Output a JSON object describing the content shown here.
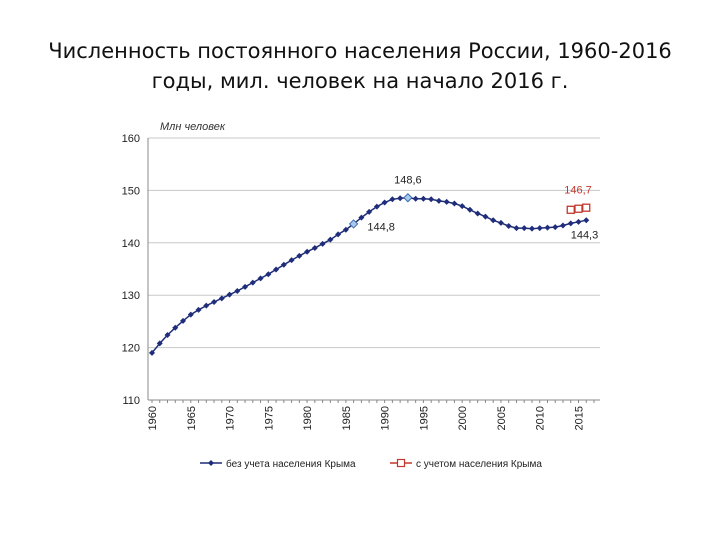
{
  "slide": {
    "title_line1": "Численность постоянного населения России, 1960-2016",
    "title_line2": "годы, мил. человек на начало 2016 г."
  },
  "chart_data": {
    "type": "line",
    "unit_label": "Млн человек",
    "ylim": [
      110,
      160
    ],
    "y_ticks": [
      "110",
      "120",
      "130",
      "140",
      "150",
      "160"
    ],
    "xlim": [
      1960,
      2017
    ],
    "x_ticks": [
      "1960",
      "1965",
      "1970",
      "1975",
      "1980",
      "1985",
      "1990",
      "1995",
      "2000",
      "2005",
      "2010",
      "2015"
    ],
    "grid": true,
    "legend_position": "bottom",
    "series": [
      {
        "name": "без учета населения Крыма",
        "color": "#1f2d7a",
        "x": [
          1960,
          1961,
          1962,
          1963,
          1964,
          1965,
          1966,
          1967,
          1968,
          1969,
          1970,
          1971,
          1972,
          1973,
          1974,
          1975,
          1976,
          1977,
          1978,
          1979,
          1980,
          1981,
          1982,
          1983,
          1984,
          1985,
          1986,
          1987,
          1988,
          1989,
          1990,
          1991,
          1992,
          1993,
          1994,
          1995,
          1996,
          1997,
          1998,
          1999,
          2000,
          2001,
          2002,
          2003,
          2004,
          2005,
          2006,
          2007,
          2008,
          2009,
          2010,
          2011,
          2012,
          2013,
          2014,
          2015,
          2016
        ],
        "values": [
          119.0,
          120.8,
          122.4,
          123.8,
          125.1,
          126.3,
          127.2,
          128.0,
          128.7,
          129.4,
          130.1,
          130.8,
          131.6,
          132.4,
          133.2,
          134.0,
          134.9,
          135.8,
          136.7,
          137.5,
          138.3,
          139.0,
          139.8,
          140.6,
          141.6,
          142.5,
          143.6,
          144.8,
          145.9,
          146.9,
          147.7,
          148.3,
          148.5,
          148.6,
          148.4,
          148.4,
          148.3,
          148.0,
          147.8,
          147.5,
          147.0,
          146.3,
          145.6,
          145.0,
          144.3,
          143.8,
          143.2,
          142.8,
          142.8,
          142.7,
          142.8,
          142.9,
          143.0,
          143.3,
          143.7,
          144.0,
          144.3
        ],
        "highlight_points": [
          {
            "x": 1986,
            "value": 143.6
          },
          {
            "x": 1993,
            "value": 148.6
          }
        ]
      },
      {
        "name": "с учетом населения Крыма",
        "color": "#c0392b",
        "x": [
          2014,
          2015,
          2016
        ],
        "values": [
          146.3,
          146.5,
          146.7
        ]
      }
    ],
    "annotations": [
      {
        "text": "148,6",
        "x": 1993,
        "value": 148.6,
        "placement": "above",
        "color": "#222222"
      },
      {
        "text": "144,8",
        "x": 1987,
        "value": 144.8,
        "placement": "below-right",
        "color": "#222222"
      },
      {
        "text": "146,7",
        "x": 2016,
        "value": 146.7,
        "placement": "above-left",
        "color": "#c0392b"
      },
      {
        "text": "144,3",
        "x": 2016,
        "value": 144.3,
        "placement": "below-left",
        "color": "#222222"
      }
    ]
  }
}
